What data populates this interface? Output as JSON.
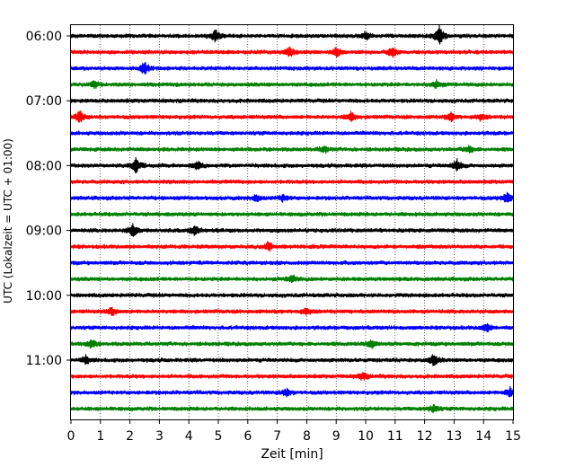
{
  "chart_data": {
    "type": "line",
    "subtype": "helicorder",
    "title": "",
    "xlabel": "Zeit  [min]",
    "ylabel": "UTC (Lokalzeit = UTC + 01:00)",
    "xlim": [
      0,
      15
    ],
    "x_ticks": [
      "0",
      "1",
      "2",
      "3",
      "4",
      "5",
      "6",
      "7",
      "8",
      "9",
      "10",
      "11",
      "12",
      "13",
      "14",
      "15"
    ],
    "y_ticks": [
      "06:00",
      "07:00",
      "08:00",
      "09:00",
      "10:00",
      "11:00"
    ],
    "trace_start_times": [
      "06:00",
      "06:15",
      "06:30",
      "06:45",
      "07:00",
      "07:15",
      "07:30",
      "07:45",
      "08:00",
      "08:15",
      "08:30",
      "08:45",
      "09:00",
      "09:15",
      "09:30",
      "09:45",
      "10:00",
      "10:15",
      "10:30",
      "10:45",
      "11:00",
      "11:15",
      "11:30",
      "11:45"
    ],
    "trace_minutes": 15,
    "line_colors": [
      "#000000",
      "#ff0000",
      "#0000ff",
      "#008000"
    ],
    "grid": "vertical dotted every minute",
    "events": [
      {
        "trace": 0,
        "min": 4.9,
        "amp": 0.5
      },
      {
        "trace": 0,
        "min": 10.0,
        "amp": 0.35
      },
      {
        "trace": 0,
        "min": 12.5,
        "amp": 1.0
      },
      {
        "trace": 1,
        "min": 7.4,
        "amp": 0.45
      },
      {
        "trace": 1,
        "min": 9.0,
        "amp": 0.4
      },
      {
        "trace": 1,
        "min": 10.9,
        "amp": 0.45
      },
      {
        "trace": 2,
        "min": 2.5,
        "amp": 0.6
      },
      {
        "trace": 3,
        "min": 0.8,
        "amp": 0.35
      },
      {
        "trace": 3,
        "min": 12.4,
        "amp": 0.35
      },
      {
        "trace": 5,
        "min": 0.3,
        "amp": 0.55
      },
      {
        "trace": 5,
        "min": 9.5,
        "amp": 0.4
      },
      {
        "trace": 5,
        "min": 12.9,
        "amp": 0.35
      },
      {
        "trace": 5,
        "min": 13.9,
        "amp": 0.3
      },
      {
        "trace": 7,
        "min": 8.6,
        "amp": 0.3
      },
      {
        "trace": 7,
        "min": 13.5,
        "amp": 0.3
      },
      {
        "trace": 8,
        "min": 2.2,
        "amp": 0.8
      },
      {
        "trace": 8,
        "min": 4.3,
        "amp": 0.35
      },
      {
        "trace": 8,
        "min": 13.1,
        "amp": 0.55
      },
      {
        "trace": 10,
        "min": 6.3,
        "amp": 0.35
      },
      {
        "trace": 10,
        "min": 7.2,
        "amp": 0.3
      },
      {
        "trace": 10,
        "min": 14.8,
        "amp": 0.45
      },
      {
        "trace": 12,
        "min": 2.1,
        "amp": 0.6
      },
      {
        "trace": 12,
        "min": 4.2,
        "amp": 0.5
      },
      {
        "trace": 13,
        "min": 6.7,
        "amp": 0.4
      },
      {
        "trace": 15,
        "min": 7.5,
        "amp": 0.35
      },
      {
        "trace": 17,
        "min": 1.4,
        "amp": 0.35
      },
      {
        "trace": 17,
        "min": 8.0,
        "amp": 0.35
      },
      {
        "trace": 18,
        "min": 14.1,
        "amp": 0.4
      },
      {
        "trace": 19,
        "min": 0.7,
        "amp": 0.4
      },
      {
        "trace": 19,
        "min": 10.2,
        "amp": 0.4
      },
      {
        "trace": 20,
        "min": 0.5,
        "amp": 0.35
      },
      {
        "trace": 20,
        "min": 12.3,
        "amp": 0.5
      },
      {
        "trace": 21,
        "min": 9.9,
        "amp": 0.35
      },
      {
        "trace": 22,
        "min": 7.3,
        "amp": 0.35
      },
      {
        "trace": 22,
        "min": 14.9,
        "amp": 0.45
      },
      {
        "trace": 23,
        "min": 12.3,
        "amp": 0.35
      }
    ]
  }
}
